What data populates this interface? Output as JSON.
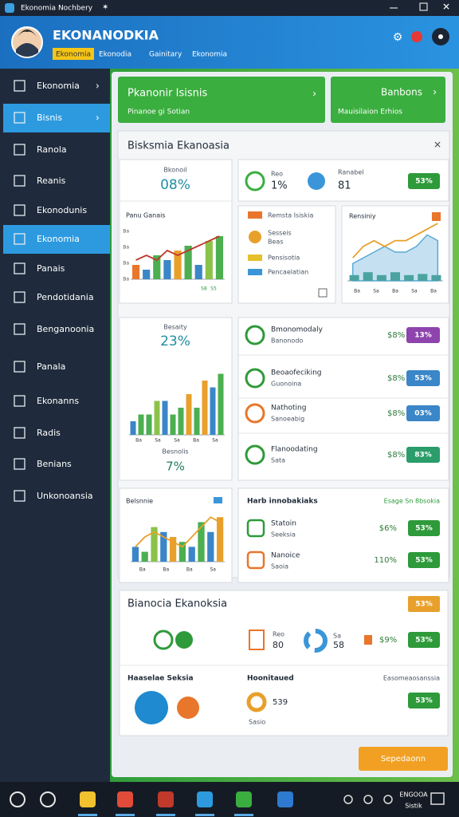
{
  "window": {
    "title": "Ekonomia Nochbery"
  },
  "header": {
    "title": "EKONANODKIA",
    "tag": "Ekonomia",
    "tabs": [
      "Ekonodia",
      "Gainitary",
      "Ekonomia"
    ]
  },
  "sidebar": {
    "items": [
      "Ekonomia",
      "Bisnis",
      "Ranola",
      "Reanis",
      "Ekonodunis",
      "Ekonomia",
      "Panais",
      "Pendotidania",
      "Benganoonia",
      "Panala",
      "Ekonanns",
      "Radis",
      "Benians",
      "Unkonoansia"
    ],
    "active": [
      1,
      5
    ]
  },
  "cards": [
    {
      "title": "Pkanonir Isisnis",
      "subtitle": "Pinanoe gi Sotian"
    },
    {
      "title": "Banbons",
      "subtitle": "Mauisilaion Erhios"
    }
  ],
  "panel": {
    "title": "Bisksmia Ekanoasia",
    "kpi1": {
      "label": "Bkonoil",
      "value": "08%"
    },
    "kpi2": {
      "label": "Besaity",
      "value": "23%",
      "label2": "Besnolis",
      "value2": "7%"
    },
    "stats": {
      "a_label": "Reo",
      "a_value": "1%",
      "b_label": "Ranabel",
      "b_value": "81",
      "pill": "53%"
    },
    "list": [
      "Remsta Isiskia",
      "Sesseis",
      "Beas",
      "Pensisotia",
      "Pencaelatian"
    ],
    "rows": [
      {
        "title": "Bmonomodaly",
        "sub": "Banonodo",
        "pct": "$8%",
        "pill": "13%"
      },
      {
        "title": "Beoaofeciking",
        "sub": "Guonoina",
        "pct": "$8%",
        "pill": "53%"
      },
      {
        "title": "Nathoting",
        "sub": "Sanoeabig",
        "pct": "$8%",
        "pill": "03%"
      },
      {
        "title": "Flanoodating",
        "sub": "Sata",
        "pct": "$8%",
        "pill": "83%"
      }
    ],
    "table": {
      "title": "Harb innobakiaks",
      "note": "Esage Sn 8bsokia",
      "rows": [
        {
          "title": "Statoin",
          "sub": "Seeksia",
          "pct": "$6%",
          "pill": "53%"
        },
        {
          "title": "Nanoice",
          "sub": "Saoia",
          "pct": "110%",
          "pill": "53%"
        }
      ]
    }
  },
  "charts": [
    {
      "title": "Panu Ganais",
      "ylim": [
        0,
        10
      ],
      "y_labels": [
        "Ba",
        "Ba",
        "Ba",
        "Ba"
      ],
      "x_labels": [
        "S8",
        "S5"
      ],
      "bars": {
        "values": [
          3,
          2,
          5,
          4,
          6,
          7,
          3,
          8,
          9
        ],
        "colors": [
          "#e8762b",
          "#3a86c8",
          "#4caf50",
          "#3a86c8",
          "#e8a02b",
          "#4caf50",
          "#3a86c8",
          "#8bc34a",
          "#4caf50"
        ]
      },
      "line": {
        "values": [
          4,
          5,
          4,
          6,
          5,
          6,
          7,
          8,
          9
        ],
        "color": "#c0392b"
      }
    },
    {
      "title": "Rensiniy",
      "ylim": [
        0,
        10
      ],
      "x_labels": [
        "Ba",
        "Sa",
        "Ba",
        "Sa",
        "Ba"
      ],
      "bars": {
        "values": [
          1,
          1.5,
          1,
          1.5,
          1,
          1.2,
          1
        ],
        "colors": [
          "#4aa3a0",
          "#4aa3a0",
          "#4aa3a0",
          "#4aa3a0",
          "#4aa3a0",
          "#4aa3a0",
          "#4aa3a0"
        ]
      },
      "area": {
        "values": [
          3,
          4,
          5,
          6,
          5,
          5,
          6,
          8,
          7
        ],
        "color": "#5aa9d6"
      },
      "line": {
        "values": [
          4,
          6,
          7,
          6,
          7,
          7,
          8,
          9,
          10
        ],
        "color": "#e8a02b"
      }
    },
    {
      "ylim": [
        0,
        10
      ],
      "x_labels": [
        "Ba",
        "Sa",
        "Sa",
        "Ba",
        "Sa"
      ],
      "bars": {
        "values": [
          2,
          3,
          3,
          5,
          5,
          3,
          4,
          6,
          4,
          8,
          7,
          9
        ],
        "colors": [
          "#3a86c8",
          "#4caf50",
          "#4caf50",
          "#8bc34a",
          "#3a86c8",
          "#4caf50",
          "#4caf50",
          "#e8a02b",
          "#4caf50",
          "#e8a02b",
          "#3a86c8",
          "#4caf50"
        ]
      }
    },
    {
      "title": "Belsnnie",
      "ylim": [
        0,
        10
      ],
      "x_labels": [
        "Ba",
        "Ba",
        "Ba",
        "Sa"
      ],
      "bars": {
        "values": [
          3,
          2,
          7,
          6,
          5,
          4,
          3,
          8,
          6,
          9
        ],
        "colors": [
          "#3a86c8",
          "#4caf50",
          "#8bc34a",
          "#3a86c8",
          "#e8a02b",
          "#4caf50",
          "#3a86c8",
          "#4caf50",
          "#3a86c8",
          "#e8a02b"
        ]
      },
      "line": {
        "values": [
          3,
          5,
          6,
          5,
          4,
          3,
          5,
          7,
          9,
          8
        ],
        "color": "#e8a02b"
      }
    }
  ],
  "section": {
    "title": "Bianocia Ekanoksia",
    "pill": "53%",
    "row1": {
      "a_label": "Reo",
      "a_value": "80",
      "b_label": "Sa",
      "b_value": "58",
      "pct": "$9%",
      "pill": "53%"
    },
    "row2": {
      "title": "Haaselae Seksia",
      "sub_title": "Hoonitaued",
      "note": "Easomeaosanssia",
      "value": "539",
      "sub": "Sasio",
      "pill": "53%"
    }
  },
  "button": "Sepedaonn",
  "taskbar": {
    "lang": "ENGOOA",
    "status": "Sistik"
  }
}
